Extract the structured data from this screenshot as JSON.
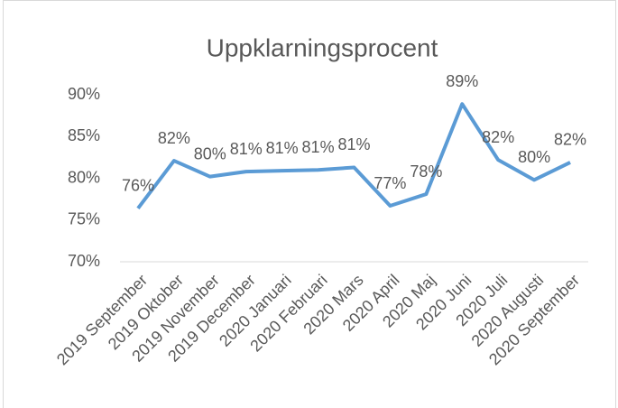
{
  "chart_data": {
    "type": "line",
    "title": "Uppklarningsprocent",
    "categories": [
      "2019 September",
      "2019 Oktober",
      "2019 November",
      "2019 December",
      "2020 Januari",
      "2020 Februari",
      "2020 Mars",
      "2020 April",
      "2020 Maj",
      "2020 Juni",
      "2020 Juli",
      "2020 Augusti",
      "2020 September"
    ],
    "series": [
      {
        "name": "Uppklarningsprocent",
        "color": "#5b9bd5",
        "values": [
          76.4,
          82.1,
          80.2,
          80.8,
          80.9,
          81.0,
          81.3,
          76.7,
          78.1,
          88.9,
          82.2,
          79.8,
          81.9
        ],
        "value_labels": [
          "76%",
          "82%",
          "80%",
          "81%",
          "81%",
          "81%",
          "81%",
          "77%",
          "78%",
          "89%",
          "82%",
          "80%",
          "82%"
        ]
      }
    ],
    "ylim": [
      70,
      90
    ],
    "yticks": [
      {
        "value": 70,
        "label": "70%"
      },
      {
        "value": 75,
        "label": "75%"
      },
      {
        "value": 80,
        "label": "80%"
      },
      {
        "value": 85,
        "label": "85%"
      },
      {
        "value": 90,
        "label": "90%"
      }
    ],
    "grid": false
  }
}
